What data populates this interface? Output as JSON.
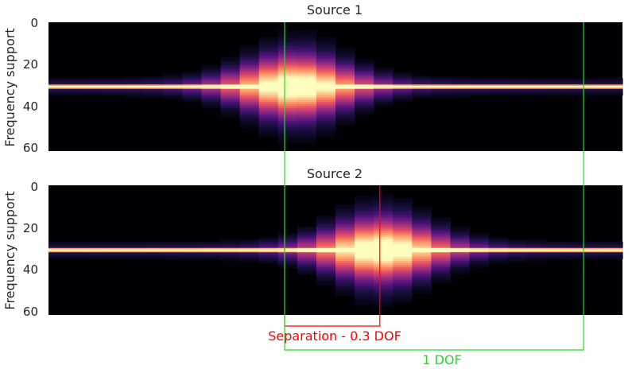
{
  "chart_data": {
    "type": "heatmap",
    "panels": [
      {
        "title": "Source 1",
        "ylabel": "Frequency support",
        "yticks": [
          "0",
          "20",
          "40",
          "60"
        ],
        "ylim": [
          0,
          60
        ],
        "center_frac": 0.43,
        "width_frac": 0.23,
        "peak_bin": 30,
        "bins": 60,
        "columns": 30
      },
      {
        "title": "Source 2",
        "ylabel": "Frequency support",
        "yticks": [
          "0",
          "20",
          "40",
          "60"
        ],
        "ylim": [
          0,
          60
        ],
        "center_frac": 0.58,
        "width_frac": 0.23,
        "peak_bin": 30,
        "bins": 60,
        "columns": 30
      }
    ],
    "colormap": [
      "#000004",
      "#1c1044",
      "#4f127b",
      "#812581",
      "#b5367a",
      "#e55064",
      "#fb8761",
      "#fec287",
      "#fcfdbf"
    ],
    "annotations": {
      "separation_label": "Separation - 0.3 DOF",
      "separation_color": "#ff0000",
      "dof_label": "1 DOF",
      "dof_color": "#22dd22",
      "separation_frac": 0.3,
      "dof_frac": 1.0
    }
  }
}
